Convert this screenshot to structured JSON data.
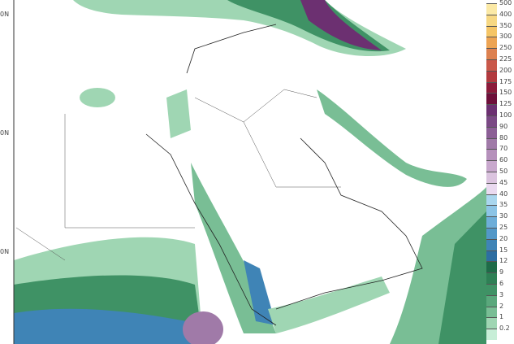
{
  "map": {
    "lat_labels": [
      "0N",
      "0N",
      "0N"
    ],
    "legend": {
      "labels": [
        "500",
        "400",
        "350",
        "300",
        "250",
        "225",
        "200",
        "175",
        "150",
        "125",
        "100",
        "90",
        "80",
        "70",
        "60",
        "50",
        "45",
        "40",
        "35",
        "30",
        "25",
        "20",
        "15",
        "12",
        "9",
        "6",
        "3",
        "2",
        "1",
        "0.2"
      ],
      "colors": [
        "#fbe9a6",
        "#f7d883",
        "#f5c566",
        "#eda453",
        "#dd8150",
        "#c9584a",
        "#b23a3e",
        "#8c1a3a",
        "#6e0f3a",
        "#6c3071",
        "#7b4985",
        "#8c5f96",
        "#a07aa8",
        "#b590bb",
        "#c8a8cd",
        "#dbc4df",
        "#eadaf0",
        "#a9d6ee",
        "#8cc4e6",
        "#6eaed9",
        "#5398c8",
        "#3f84b6",
        "#2d6ea2",
        "#1f6b48",
        "#2e8055",
        "#3f9265",
        "#5aa87c",
        "#79be95",
        "#9fd6b3",
        "#c7eed7"
      ]
    }
  }
}
